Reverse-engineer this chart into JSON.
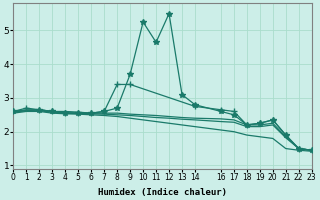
{
  "xlabel": "Humidex (Indice chaleur)",
  "background_color": "#cceee8",
  "grid_color": "#aaddcc",
  "line_color": "#1a7a6a",
  "xlim": [
    0,
    23
  ],
  "ylim": [
    0.9,
    5.8
  ],
  "yticks": [
    1,
    2,
    3,
    4,
    5
  ],
  "xtick_positions": [
    0,
    1,
    2,
    3,
    4,
    5,
    6,
    7,
    8,
    9,
    10,
    11,
    12,
    13,
    14,
    16,
    17,
    18,
    19,
    20,
    21,
    22,
    23
  ],
  "xtick_labels": [
    "0",
    "1",
    "2",
    "3",
    "4",
    "5",
    "6",
    "7",
    "8",
    "9",
    "10",
    "11",
    "12",
    "13",
    "14",
    "16",
    "17",
    "18",
    "19",
    "20",
    "21",
    "22",
    "23"
  ],
  "lines": [
    {
      "x": [
        0,
        2,
        3,
        4,
        5,
        6,
        7,
        8,
        9,
        10,
        11,
        12,
        13,
        14,
        16,
        17,
        18,
        19,
        20,
        21,
        22,
        23
      ],
      "y": [
        2.6,
        2.65,
        2.6,
        2.55,
        2.55,
        2.55,
        2.6,
        2.7,
        3.7,
        5.25,
        4.65,
        5.5,
        3.1,
        2.8,
        2.6,
        2.5,
        2.2,
        2.25,
        2.35,
        1.9,
        1.5,
        1.45
      ],
      "marker": "*",
      "markersize": 4
    },
    {
      "x": [
        0,
        1,
        2,
        3,
        4,
        5,
        6,
        7,
        8,
        9,
        14,
        16,
        17,
        18,
        19,
        20,
        21,
        22,
        23
      ],
      "y": [
        2.6,
        2.7,
        2.65,
        2.6,
        2.55,
        2.55,
        2.55,
        2.6,
        3.4,
        3.4,
        2.75,
        2.65,
        2.6,
        2.2,
        2.25,
        2.35,
        1.9,
        1.5,
        1.45
      ],
      "marker": "+",
      "markersize": 4
    },
    {
      "x": [
        0,
        1,
        2,
        3,
        4,
        5,
        6,
        7,
        8,
        9,
        10,
        11,
        12,
        13,
        14,
        16,
        17,
        18,
        19,
        20,
        21,
        22,
        23
      ],
      "y": [
        2.6,
        2.65,
        2.65,
        2.6,
        2.6,
        2.58,
        2.55,
        2.55,
        2.55,
        2.52,
        2.5,
        2.48,
        2.45,
        2.42,
        2.4,
        2.38,
        2.35,
        2.2,
        2.2,
        2.25,
        1.85,
        1.5,
        1.45
      ],
      "marker": null,
      "markersize": 0
    },
    {
      "x": [
        0,
        1,
        2,
        3,
        4,
        5,
        6,
        7,
        8,
        9,
        10,
        11,
        12,
        13,
        14,
        16,
        17,
        18,
        19,
        20,
        21,
        22,
        23
      ],
      "y": [
        2.58,
        2.62,
        2.62,
        2.58,
        2.56,
        2.55,
        2.53,
        2.52,
        2.5,
        2.48,
        2.45,
        2.42,
        2.4,
        2.37,
        2.35,
        2.3,
        2.28,
        2.15,
        2.15,
        2.2,
        1.82,
        1.5,
        1.45
      ],
      "marker": null,
      "markersize": 0
    },
    {
      "x": [
        0,
        1,
        2,
        3,
        4,
        5,
        6,
        7,
        8,
        9,
        10,
        11,
        12,
        13,
        14,
        16,
        17,
        18,
        19,
        20,
        21,
        22,
        23
      ],
      "y": [
        2.55,
        2.6,
        2.6,
        2.55,
        2.53,
        2.52,
        2.5,
        2.48,
        2.45,
        2.4,
        2.35,
        2.3,
        2.25,
        2.2,
        2.15,
        2.05,
        2.0,
        1.9,
        1.85,
        1.8,
        1.5,
        1.45,
        1.42
      ],
      "marker": null,
      "markersize": 0
    }
  ]
}
